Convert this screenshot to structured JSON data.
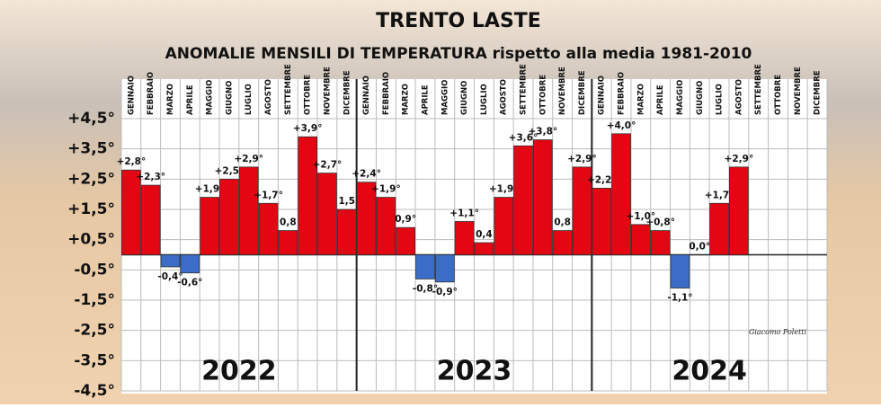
{
  "chart_data": {
    "type": "bar",
    "title": "TRENTO LASTE",
    "subtitle": "ANOMALIE MENSILI DI TEMPERATURA rispetto alla media 1981-2010",
    "categories": [
      "GENNAIO",
      "FEBBRAIO",
      "MARZO",
      "APRILE",
      "MAGGIO",
      "GIUGNO",
      "LUGLIO",
      "AGOSTO",
      "SETTEMBRE",
      "OTTOBRE",
      "NOVEMBRE",
      "DICEMBRE",
      "GENNAIO",
      "FEBBRAIO",
      "MARZO",
      "APRILE",
      "MAGGIO",
      "GIUGNO",
      "LUGLIO",
      "AGOSTO",
      "SETTEMBRE",
      "OTTOBRE",
      "NOVEMBRE",
      "DICEMBRE",
      "GENNAIO",
      "FEBBRAIO",
      "MARZO",
      "APRILE",
      "MAGGIO",
      "GIUGNO",
      "LUGLIO",
      "AGOSTO",
      "SETTEMBRE",
      "OTTOBRE",
      "NOVEMBRE",
      "DICEMBRE"
    ],
    "values": [
      2.8,
      2.3,
      -0.4,
      -0.6,
      1.9,
      2.5,
      2.9,
      1.7,
      0.8,
      3.9,
      2.7,
      1.5,
      2.4,
      1.9,
      0.9,
      -0.8,
      -0.9,
      1.1,
      0.4,
      1.9,
      3.6,
      3.8,
      0.8,
      2.9,
      2.2,
      4.0,
      1.0,
      0.8,
      -1.1,
      0.0,
      1.7,
      2.9,
      null,
      null,
      null,
      null
    ],
    "value_labels": [
      "+2,8°",
      "+2,3°",
      "-0,4°",
      "-0,6°",
      "+1,9°",
      "+2,5°",
      "+2,9°",
      "+1,7°",
      "0,8",
      "+3,9°",
      "+2,7°",
      "1,5",
      "+2,4°",
      "+1,9°",
      "0,9°",
      "-0,8°",
      "-0,9°",
      "+1,1°",
      "0,4",
      "+1,9°",
      "+3,6°",
      "+3,8°",
      "0,8",
      "+2,9°",
      "+2,2°",
      "+4,0°",
      "+1,0°",
      "+0,8°",
      "-1,1°",
      "0,0°",
      "+1,7°",
      "+2,9°",
      null,
      null,
      null,
      null
    ],
    "years": [
      "2022",
      "2023",
      "2024"
    ],
    "positive_color": "#e30613",
    "negative_color": "#3a6cc8",
    "ylim": [
      -4.5,
      4.5
    ],
    "yticks": [
      {
        "value": 4.5,
        "label": "+4,5°"
      },
      {
        "value": 3.5,
        "label": "+3,5°"
      },
      {
        "value": 2.5,
        "label": "+2,5°"
      },
      {
        "value": 1.5,
        "label": "+1,5°"
      },
      {
        "value": 0.5,
        "label": "+0,5°"
      },
      {
        "value": -0.5,
        "label": "-0,5°"
      },
      {
        "value": -1.5,
        "label": "-1,5°"
      },
      {
        "value": -2.5,
        "label": "-2,5°"
      },
      {
        "value": -3.5,
        "label": "-3,5°"
      },
      {
        "value": -4.5,
        "label": "-4,5°"
      }
    ],
    "grid": true,
    "signature": "Giacomo Poletti"
  }
}
